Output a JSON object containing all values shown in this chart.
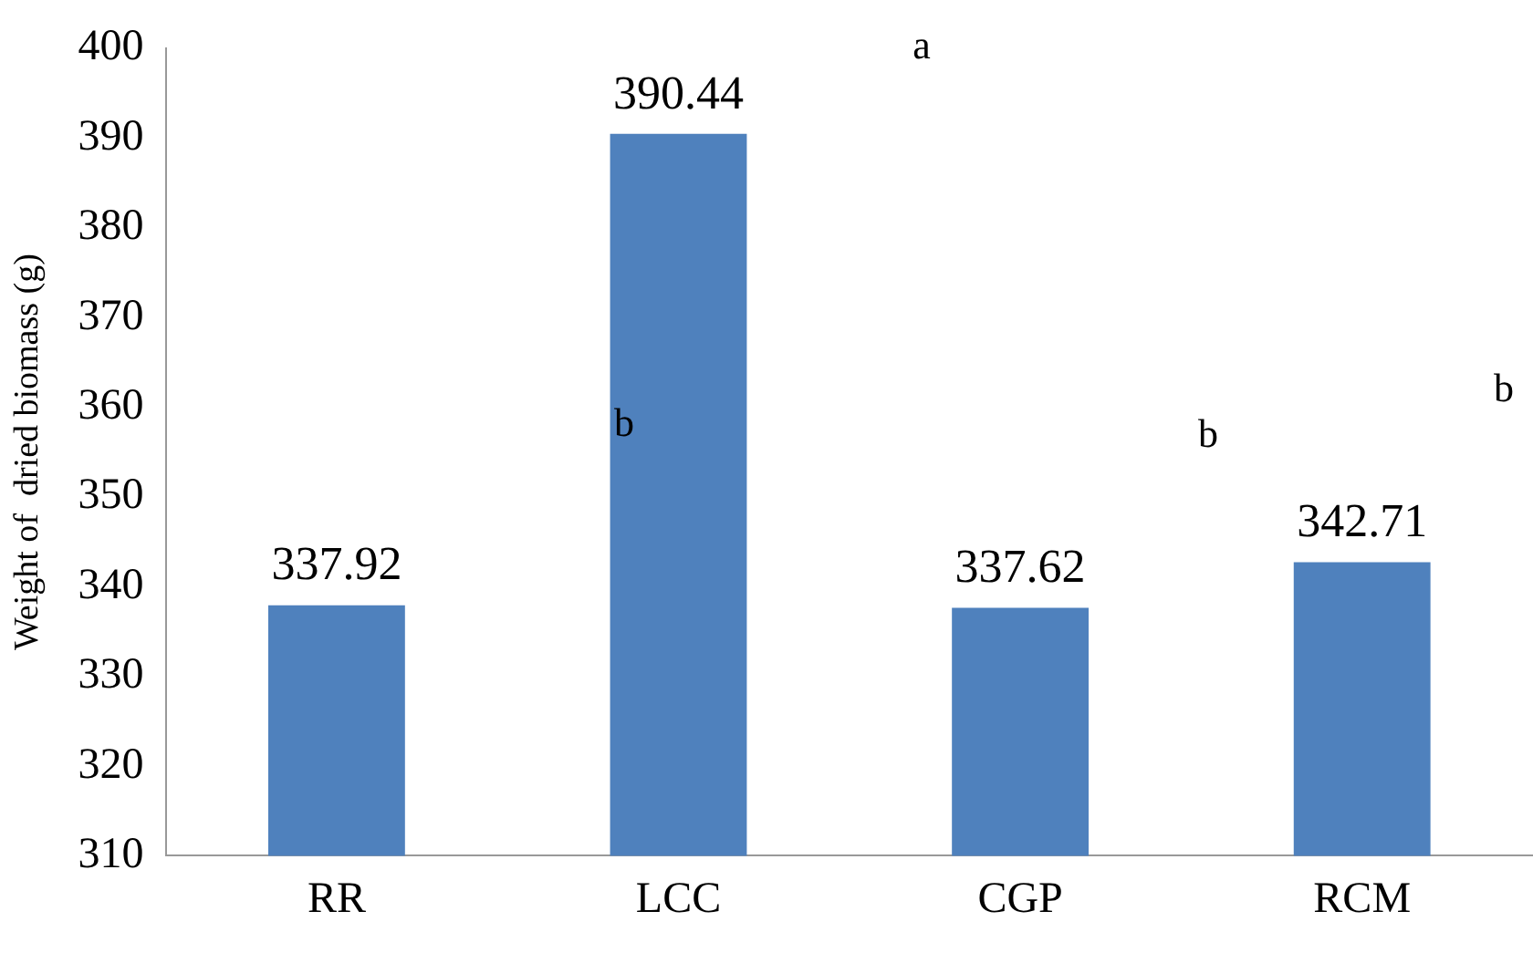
{
  "chart_data": {
    "type": "bar",
    "ylabel": "Weight of  dried biomass (g)",
    "categories": [
      "RR",
      "LCC",
      "CGP",
      "RCM"
    ],
    "values": [
      337.92,
      390.44,
      337.62,
      342.71
    ],
    "color": "#4f81bd",
    "ylim": [
      310,
      400
    ],
    "yticks": [
      310,
      320,
      330,
      340,
      350,
      360,
      370,
      380,
      390,
      400
    ],
    "grid": false,
    "legend": false,
    "data_labels": true,
    "annotations": [
      "a",
      "b",
      "b",
      "b"
    ]
  }
}
